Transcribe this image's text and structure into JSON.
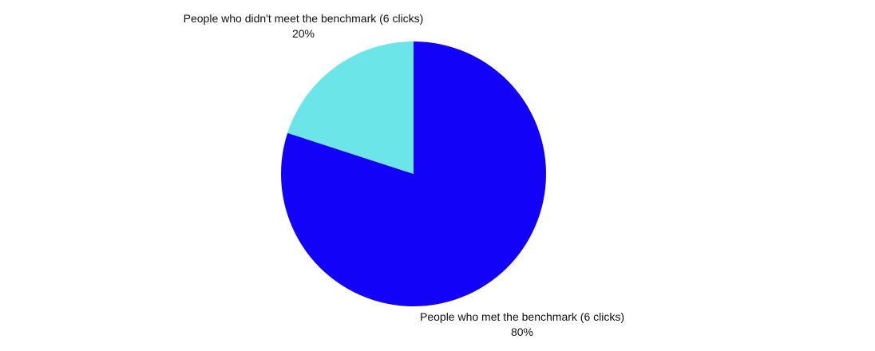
{
  "chart_data": {
    "type": "pie",
    "title": "",
    "slices": [
      {
        "label": "People who met the benchmark (6 clicks)",
        "value": 80,
        "display": "80%",
        "color": "#1302F8"
      },
      {
        "label": "People who didn't meet the benchmark (6 clicks)",
        "value": 20,
        "display": "20%",
        "color": "#6CE5E8"
      }
    ],
    "start_angle_deg": 0,
    "direction": "clockwise",
    "legend": "none"
  }
}
